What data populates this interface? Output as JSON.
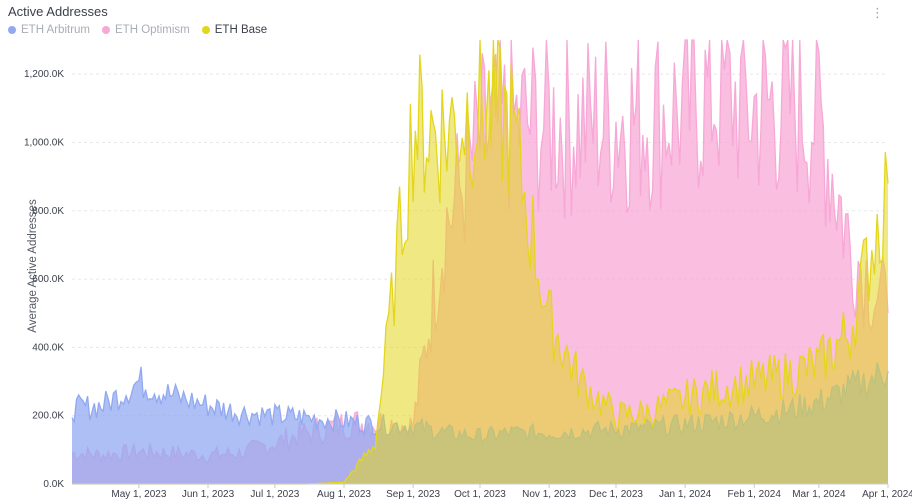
{
  "header": {
    "title": "Active Addresses",
    "menu_icon": "info-icon"
  },
  "chart_data": {
    "type": "area",
    "title": "Active Addresses",
    "ylabel": "Average Active Addresses",
    "xlabel": "",
    "ylim": [
      0,
      1300000
    ],
    "yticks": [
      "0.0K",
      "200.0K",
      "400.0K",
      "600.0K",
      "800.0K",
      "1,000.0K",
      "1,200.0K"
    ],
    "xticks": [
      "May 1, 2023",
      "Jun 1, 2023",
      "Jul 1, 2023",
      "Aug 1, 2023",
      "Sep 1, 2023",
      "Oct 1, 2023",
      "Nov 1, 2023",
      "Dec 1, 2023",
      "Jan 1, 2024",
      "Feb 1, 2024",
      "Mar 1, 2024",
      "Apr 1, 2024"
    ],
    "legend_position": "top-left",
    "grid": true,
    "x": [
      "2023-04-01",
      "2023-04-15",
      "2023-05-01",
      "2023-05-15",
      "2023-06-01",
      "2023-06-15",
      "2023-07-01",
      "2023-07-15",
      "2023-08-01",
      "2023-08-15",
      "2023-09-01",
      "2023-09-15",
      "2023-10-01",
      "2023-10-15",
      "2023-11-01",
      "2023-11-15",
      "2023-12-01",
      "2023-12-15",
      "2024-01-01",
      "2024-01-15",
      "2024-02-01",
      "2024-02-15",
      "2024-03-01",
      "2024-03-15",
      "2024-04-01"
    ],
    "series": [
      {
        "name": "ETH Arbitrum",
        "color": "#91a9f0",
        "values": [
          220000,
          230000,
          300000,
          260000,
          230000,
          210000,
          200000,
          195000,
          185000,
          175000,
          170000,
          150000,
          140000,
          150000,
          150000,
          155000,
          160000,
          165000,
          175000,
          185000,
          200000,
          215000,
          240000,
          280000,
          330000
        ]
      },
      {
        "name": "ETH Optimism",
        "color": "#f7a8d6",
        "values": [
          90000,
          85000,
          95000,
          90000,
          85000,
          90000,
          120000,
          150000,
          175000,
          180000,
          170000,
          750000,
          1000000,
          1050000,
          1060000,
          1050000,
          1070000,
          1080000,
          1100000,
          1150000,
          1100000,
          1120000,
          1080000,
          700000,
          500000
        ]
      },
      {
        "name": "ETH Base",
        "color": "#e3d61d",
        "values": [
          0,
          0,
          0,
          0,
          0,
          0,
          0,
          0,
          5000,
          120000,
          1050000,
          1030000,
          1120000,
          1050000,
          480000,
          300000,
          200000,
          210000,
          250000,
          280000,
          300000,
          320000,
          350000,
          450000,
          880000
        ]
      }
    ]
  }
}
